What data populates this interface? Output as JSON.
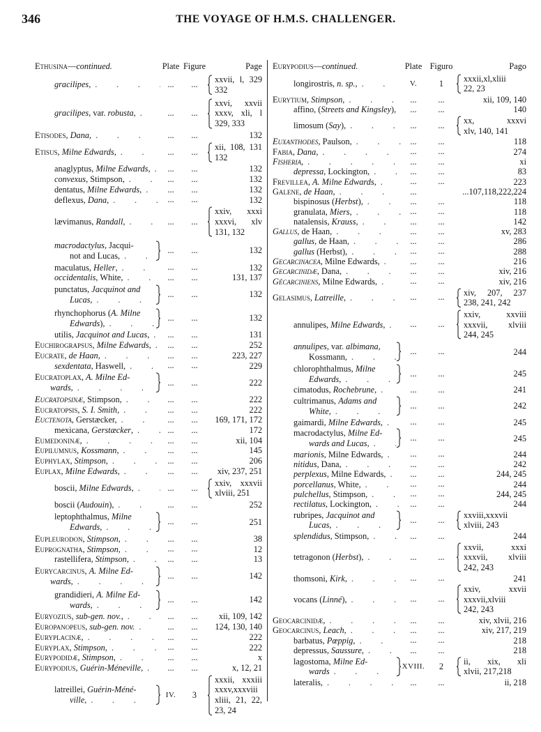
{
  "page_number": "346",
  "running_title": "THE VOYAGE OF H.M.S. CHALLENGER.",
  "columns": [
    {
      "header": {
        "title": "^Ethusina^—*continued.*",
        "plate": "Plate",
        "figure": "Figure",
        "page": "Page"
      },
      "entries": [
        {
          "name": "*gracilipes*,",
          "level": 1,
          "plate": "...",
          "figure": "...",
          "page": [
            "xxvii, l, 329",
            "332"
          ]
        },
        {
          "name": "*gracilipes*, var. *robusta*,",
          "level": 1,
          "plate": "...",
          "figure": "...",
          "page": [
            "xxvi,  xxvii",
            "xxxv,  xli, l",
            "329, 333"
          ]
        },
        {
          "name": "^Etisodes^, *Dana*,",
          "level": 0,
          "plate": "...",
          "figure": "...",
          "page": [
            "132"
          ]
        },
        {
          "name": "^Etisus^, *Milne Edwards*,",
          "level": 0,
          "plate": "...",
          "figure": "...",
          "page": [
            "xii, 108, 131",
            "132"
          ]
        },
        {
          "name": "anaglyptus, *Milne Edwards*,",
          "level": 1,
          "plate": "...",
          "figure": "...",
          "page": [
            "132"
          ]
        },
        {
          "name": "*convexus*, Stimpson,",
          "level": 1,
          "plate": "...",
          "figure": "...",
          "page": [
            "132"
          ]
        },
        {
          "name": "dentatus, *Milne Edwards*,",
          "level": 1,
          "plate": "...",
          "figure": "...",
          "page": [
            "132"
          ]
        },
        {
          "name": "deflexus, *Dana*,",
          "level": 1,
          "plate": "...",
          "figure": "...",
          "page": [
            "132"
          ]
        },
        {
          "name": "lævimanus, *Randall*,",
          "level": 1,
          "plate": "...",
          "figure": "...",
          "page": [
            "xxiv,  xxxi",
            "xxxvi,  xlv",
            "131, 132"
          ]
        },
        {
          "name": "*macrodactylus*, Jacqui-|not and Lucas,",
          "level": 1,
          "plate": "...",
          "figure": "...",
          "page": [
            "132"
          ]
        },
        {
          "name": "maculatus, *Heller*,",
          "level": 1,
          "plate": "...",
          "figure": "...",
          "page": [
            "132"
          ]
        },
        {
          "name": "*occidentalis*, White,",
          "level": 1,
          "plate": "...",
          "figure": "...",
          "page": [
            "131, 137"
          ]
        },
        {
          "name": "punctatus, *Jacquinot and*|*Lucas*,",
          "level": 1,
          "plate": "...",
          "figure": "...",
          "page": [
            "132"
          ]
        },
        {
          "name": "rhynchophorus (*A. Milne*|*Edwards*),",
          "level": 1,
          "plate": "...",
          "figure": "...",
          "page": [
            "132"
          ]
        },
        {
          "name": "utilis, *Jacquinot and Lucas*,",
          "level": 1,
          "plate": "...",
          "figure": "...",
          "page": [
            "131"
          ]
        },
        {
          "name": "^Euchirograpsus^, *Milne Edwards*,",
          "level": 0,
          "plate": "...",
          "figure": "...",
          "page": [
            "252"
          ]
        },
        {
          "name": "^Eucrate^, *de Haan*,",
          "level": 0,
          "plate": "...",
          "figure": "...",
          "page": [
            "223, 227"
          ]
        },
        {
          "name": "*sexdentata*, Haswell,",
          "level": 1,
          "plate": "...",
          "figure": "...",
          "page": [
            "229"
          ]
        },
        {
          "name": "^Eucratoplax^, *A. Milne Ed-*|*wards*,",
          "level": 0,
          "plate": "...",
          "figure": "...",
          "page": [
            "222"
          ]
        },
        {
          "name": "~Eucratopsinæ~, Stimpson,",
          "level": 0,
          "plate": "...",
          "figure": "...",
          "page": [
            "222"
          ]
        },
        {
          "name": "^Eucratopsis^, *S. I. Smith*,",
          "level": 0,
          "plate": "...",
          "figure": "...",
          "page": [
            "222"
          ]
        },
        {
          "name": "~Euctenota~, Gerstæcker,",
          "level": 0,
          "plate": "...",
          "figure": "...",
          "page": [
            "169, 171, 172"
          ]
        },
        {
          "name": "mexicana, *Gerstæcker*,",
          "level": 1,
          "plate": "...",
          "figure": "...",
          "page": [
            "172"
          ]
        },
        {
          "name": "^Eumedoninæ^,",
          "level": 0,
          "plate": "...",
          "figure": "...",
          "page": [
            "xii, 104"
          ]
        },
        {
          "name": "^Eupilumnus^, *Kossmann*,",
          "level": 0,
          "plate": "...",
          "figure": "...",
          "page": [
            "145"
          ]
        },
        {
          "name": "^Euphylax^, *Stimpson*,",
          "level": 0,
          "plate": "...",
          "figure": "...",
          "page": [
            "206"
          ]
        },
        {
          "name": "^Euplax^, *Milne Edwards*,",
          "level": 0,
          "plate": "...",
          "figure": "...",
          "page": [
            "xiv, 237, 251"
          ]
        },
        {
          "name": "boscii, *Milne Edwards*,",
          "level": 1,
          "plate": "...",
          "figure": "...",
          "page": [
            "xxiv, xxxvii",
            "xlviii, 251"
          ]
        },
        {
          "name": "boscii (*Audouin*),",
          "level": 1,
          "plate": "...",
          "figure": "...",
          "page": [
            "252"
          ]
        },
        {
          "name": "leptophthalmus, *Milne*|*Edwards*,",
          "level": 1,
          "plate": "...",
          "figure": "...",
          "page": [
            "251"
          ]
        },
        {
          "name": "^Eupleurodon^, *Stimpson*,",
          "level": 0,
          "plate": "...",
          "figure": "...",
          "page": [
            "38"
          ]
        },
        {
          "name": "^Euprognatha^, *Stimpson*,",
          "level": 0,
          "plate": "...",
          "figure": "...",
          "page": [
            "12"
          ]
        },
        {
          "name": "rastellifera, *Stimpson*,",
          "level": 1,
          "plate": "...",
          "figure": "...",
          "page": [
            "13"
          ]
        },
        {
          "name": "^Eurycarcinus^, *A. Milne Ed-*|*wards*,",
          "level": 0,
          "plate": "...",
          "figure": "...",
          "page": [
            "142"
          ]
        },
        {
          "name": "grandidieri, *A. Milne Ed-*|*wards*,",
          "level": 1,
          "plate": "...",
          "figure": "...",
          "page": [
            "142"
          ]
        },
        {
          "name": "^Euryozius^, *sub-gen. nov.*,",
          "level": 0,
          "plate": "...",
          "figure": "...",
          "page": [
            "xii, 109, 142"
          ]
        },
        {
          "name": "^Europanopeus^, *sub-gen. nov.*",
          "level": 0,
          "plate": "...",
          "figure": "...",
          "page": [
            "124, 130, 140"
          ]
        },
        {
          "name": "^Euryplacinæ^,",
          "level": 0,
          "plate": "...",
          "figure": "...",
          "page": [
            "222"
          ]
        },
        {
          "name": "^Euryplax^, *Stimpson*,",
          "level": 0,
          "plate": "...",
          "figure": "...",
          "page": [
            "222"
          ]
        },
        {
          "name": "^Eurypodidæ^, *Stimpson*,",
          "level": 0,
          "plate": "...",
          "figure": "...",
          "page": [
            "x"
          ]
        },
        {
          "name": "^Eurypodius^, *Guérin-Méneville*,",
          "level": 0,
          "plate": "...",
          "figure": "...",
          "page": [
            "x, 12, 21"
          ]
        },
        {
          "name": "latreillei, *Guérin-Méné-*|*ville*,",
          "level": 1,
          "plate": "IV.",
          "figure": "3",
          "page": [
            "xxxii, xxxiii",
            "xxxv,xxxviii",
            "xliii, 21, 22,",
            "23, 24"
          ]
        }
      ]
    },
    {
      "header": {
        "title": "^Eurypodius^—*continued.*",
        "plate": "Plate",
        "figure": "Figuro",
        "page": "Pago"
      },
      "entries": [
        {
          "name": "longirostris, *n. sp.*,",
          "level": 1,
          "plate": "V.",
          "figure": "1",
          "page": [
            "xxxii,xl,xliii",
            "22, 23"
          ]
        },
        {
          "name": "^Eurytium^, *Stimpson*,",
          "level": 0,
          "plate": "...",
          "figure": "...",
          "page": [
            "xii, 109, 140"
          ]
        },
        {
          "name": "affino, (*Streets and Kingsley*),",
          "level": 1,
          "plate": "...",
          "figure": "...",
          "page": [
            "140"
          ]
        },
        {
          "name": "limosum (*Say*),",
          "level": 1,
          "plate": "...",
          "figure": "...",
          "page": [
            "xx,      xxxvi",
            "xlv, 140, 141"
          ]
        },
        {
          "name": "~Euxanthodes~, Paulson,",
          "level": 0,
          "plate": "...",
          "figure": "...",
          "page": [
            "118"
          ]
        },
        {
          "name": "^Fabia^, *Dana*,",
          "level": 0,
          "plate": "...",
          "figure": "...",
          "page": [
            "274"
          ]
        },
        {
          "name": "~Fisheria~,",
          "level": 0,
          "plate": "...",
          "figure": "...",
          "page": [
            "xi"
          ]
        },
        {
          "name": "*depressa*, Lockington,",
          "level": 1,
          "plate": "...",
          "figure": "...",
          "page": [
            "83"
          ]
        },
        {
          "name": "^Frevillea^, *A. Milne Edwards*,",
          "level": 0,
          "plate": "...",
          "figure": "...",
          "page": [
            "223"
          ]
        },
        {
          "name": "^Galene^, *de Haan*,",
          "level": 0,
          "plate": "...",
          "figure": "",
          "page": [
            "...107,118,222,224"
          ]
        },
        {
          "name": "bispinosus (*Herbst*),",
          "level": 1,
          "plate": "...",
          "figure": "...",
          "page": [
            "118"
          ]
        },
        {
          "name": "granulata, *Miers*,",
          "level": 1,
          "plate": "...",
          "figure": "...",
          "page": [
            "118"
          ]
        },
        {
          "name": "natalensis, *Krauss*,",
          "level": 1,
          "plate": "...",
          "figure": "...",
          "page": [
            "142"
          ]
        },
        {
          "name": "~Gallus~, de Haan,",
          "level": 0,
          "plate": "...",
          "figure": "...",
          "page": [
            "xv, 283"
          ]
        },
        {
          "name": "*gallus*, de Haan,",
          "level": 1,
          "plate": "...",
          "figure": "...",
          "page": [
            "286"
          ]
        },
        {
          "name": "*gallus* (Herbst),",
          "level": 1,
          "plate": "...",
          "figure": "...",
          "page": [
            "288"
          ]
        },
        {
          "name": "~Gecarcinacea~, Milne Edwards,",
          "level": 0,
          "plate": "...",
          "figure": "...",
          "page": [
            "216"
          ]
        },
        {
          "name": "~Gecarcinidæ~, Dana,",
          "level": 0,
          "plate": "...",
          "figure": "...",
          "page": [
            "xiv, 216"
          ]
        },
        {
          "name": "~Gécarciniens~, Milne Edwards,",
          "level": 0,
          "plate": "...",
          "figure": "...",
          "page": [
            "xiv, 216"
          ]
        },
        {
          "name": "^Gelasimus^, *Latreille*,",
          "level": 0,
          "plate": "...",
          "figure": "...",
          "page": [
            "xiv, 207, 237",
            "238, 241, 242"
          ]
        },
        {
          "name": "annulipes, *Milne Edwards*,",
          "level": 1,
          "plate": "...",
          "figure": "...",
          "page": [
            "xxiv,  xxviii",
            "xxxvii, xlviii",
            "244, 245"
          ]
        },
        {
          "name": "*annulipes*, var. *albimana*,|Kossmann,",
          "level": 1,
          "plate": "...",
          "figure": "...",
          "page": [
            "244"
          ]
        },
        {
          "name": "chlorophthalmus, *Milne*|*Edwards*,",
          "level": 1,
          "plate": "...",
          "figure": "...",
          "page": [
            "245"
          ]
        },
        {
          "name": "cimatodus, *Rochebrune*,",
          "level": 1,
          "plate": "...",
          "figure": "...",
          "page": [
            "241"
          ]
        },
        {
          "name": "cultrimanus, *Adams and*|*White*,",
          "level": 1,
          "plate": "...",
          "figure": "...",
          "page": [
            "242"
          ]
        },
        {
          "name": "gaimardi, *Milne Edwards*,",
          "level": 1,
          "plate": "...",
          "figure": "...",
          "page": [
            "245"
          ]
        },
        {
          "name": "macrodactylus, *Milne Ed-*|*wards and Lucas*,",
          "level": 1,
          "plate": "...",
          "figure": "...",
          "page": [
            "245"
          ]
        },
        {
          "name": "*marionis*, Milne Edwards,",
          "level": 1,
          "plate": "...",
          "figure": "...",
          "page": [
            "244"
          ]
        },
        {
          "name": "*nitidus*, Dana,",
          "level": 1,
          "plate": "...",
          "figure": "...",
          "page": [
            "242"
          ]
        },
        {
          "name": "*perplexus*, Milne Edwards,",
          "level": 1,
          "plate": "...",
          "figure": "...",
          "page": [
            "244, 245"
          ]
        },
        {
          "name": "*porcellanus*, White,",
          "level": 1,
          "plate": "...",
          "figure": "...",
          "page": [
            "244"
          ]
        },
        {
          "name": "*pulchellus*, Stimpson,",
          "level": 1,
          "plate": "...",
          "figure": "...",
          "page": [
            "244, 245"
          ]
        },
        {
          "name": "*rectilatus*, Lockington,",
          "level": 1,
          "plate": "...",
          "figure": "...",
          "page": [
            "244"
          ]
        },
        {
          "name": "rubripes, *Jacquinot and*|*Lucas*,",
          "level": 1,
          "plate": "...",
          "figure": "...",
          "page": [
            "xxviii,xxxvii",
            "xlviii, 243"
          ]
        },
        {
          "name": "*splendidus*, Stimpson,",
          "level": 1,
          "plate": "...",
          "figure": "...",
          "page": [
            "244"
          ]
        },
        {
          "name": "tetragonon (*Herbst*),",
          "level": 1,
          "plate": "...",
          "figure": "...",
          "page": [
            "xxvii,  xxxi",
            "xxxvii, xlviii",
            "242, 243"
          ]
        },
        {
          "name": "thomsoni, *Kirk*,",
          "level": 1,
          "plate": "...",
          "figure": "...",
          "page": [
            "241"
          ]
        },
        {
          "name": "vocans (*Linné*),",
          "level": 1,
          "plate": "...",
          "figure": "...",
          "page": [
            "xxiv,  xxvii",
            "xxxvii,xlviii",
            "242, 243"
          ]
        },
        {
          "name": "^Geocarcinidæ^,",
          "level": 0,
          "plate": "...",
          "figure": "...",
          "page": [
            "xiv, xlvii, 216"
          ]
        },
        {
          "name": "^Geocarcinus^, *Leach*,",
          "level": 0,
          "plate": "...",
          "figure": "...",
          "page": [
            "xiv, 217, 219"
          ]
        },
        {
          "name": "barbatus, *Pœppig*,",
          "level": 1,
          "plate": "...",
          "figure": "...",
          "page": [
            "218"
          ]
        },
        {
          "name": "depressus, *Saussure*,",
          "level": 1,
          "plate": "...",
          "figure": "...",
          "page": [
            "218"
          ]
        },
        {
          "name": "lagostoma, *Milne Ed-*|*wards*",
          "level": 1,
          "plate": "XVIII.",
          "figure": "2",
          "page": [
            "ii,  xix,  xli",
            "xlvii, 217,218"
          ]
        },
        {
          "name": "lateralis,",
          "level": 1,
          "plate": "...",
          "figure": "...",
          "page": [
            "ii, 218"
          ]
        }
      ]
    }
  ]
}
